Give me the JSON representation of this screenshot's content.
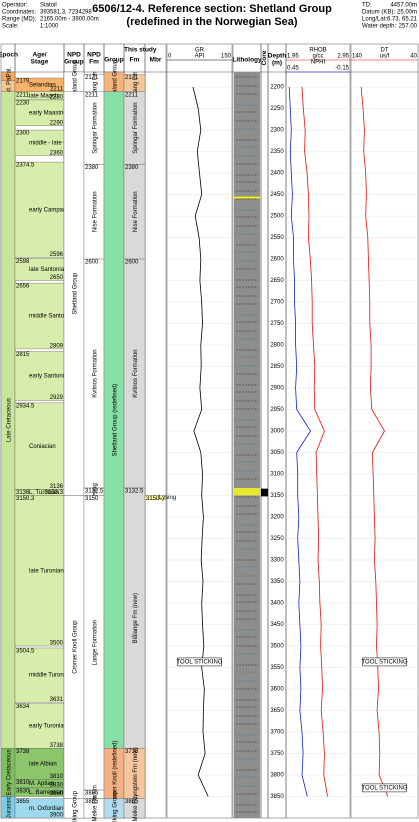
{
  "header": {
    "info": [
      [
        "Operator:",
        "Statoil"
      ],
      [
        "Coordinates:",
        "393581.3, 7234298"
      ],
      [
        "Range (MD):",
        "2165.00m - 3900.00m"
      ],
      [
        "Scale:",
        "1:1000"
      ]
    ],
    "title": [
      "6506/12-4. Reference section: Shetland Group",
      "(redefined in the Norwegian Sea)"
    ],
    "well": [
      [
        "TD:",
        "4457.00m"
      ],
      [
        "Datum (KB):",
        "25.00m"
      ],
      [
        "Long/Lat:",
        "6.73, 65.21"
      ],
      [
        "Water depth:",
        "257.00"
      ]
    ]
  },
  "this_study": "This study",
  "depth_axis": {
    "header": [
      "Depth",
      "(m)"
    ],
    "lim": [
      2165,
      3900
    ],
    "ticks": [
      2200,
      2250,
      2300,
      2350,
      2400,
      2450,
      2500,
      2550,
      2600,
      2650,
      2700,
      2750,
      2800,
      2850,
      2900,
      2950,
      3000,
      3050,
      3100,
      3150,
      3200,
      3250,
      3300,
      3350,
      3400,
      3450,
      3500,
      3550,
      3600,
      3650,
      3700,
      3750,
      3800,
      3850
    ]
  },
  "columns": [
    {
      "key": "epoch",
      "header": [
        "Epoch"
      ],
      "rotate": true,
      "print_depths": false,
      "intervals": [
        {
          "label": "Lt. Pal.",
          "top": 2165,
          "base": 2185,
          "color": "#f5a85a"
        },
        {
          "label": "Mid. Pal.",
          "top": 2185,
          "base": 2211,
          "color": "#f8c68c"
        },
        {
          "label": "Late Cretaceous",
          "top": 2211,
          "base": 3738,
          "color": "#c8e69a"
        },
        {
          "label": "Early Cretaceous",
          "top": 3738,
          "base": 3850,
          "color": "#7fbf5e"
        },
        {
          "label": "Jurassic",
          "top": 3850,
          "base": 3900,
          "color": "#7ecde6"
        }
      ]
    },
    {
      "key": "stage",
      "header": [
        "Age/",
        "Stage"
      ],
      "rotate": false,
      "print_depths": true,
      "intervals": [
        {
          "label": "Selandian",
          "top": 2179,
          "base": 2211,
          "color": "#f7b36b"
        },
        {
          "label": "late Maastr.",
          "top": 2211,
          "base": 2230,
          "color": "#d8ecab"
        },
        {
          "label": "early Maastricht.",
          "top": 2230,
          "base": 2290,
          "color": "#d8ecab"
        },
        {
          "label": "middle - late Campanian",
          "top": 2300,
          "base": 2360,
          "color": "#d8ecab"
        },
        {
          "label": "early Campanian",
          "top": 2374.5,
          "base": 2596,
          "color": "#d8ecab"
        },
        {
          "label": "late Santonian",
          "top": 2598,
          "base": 2650,
          "color": "#d8ecab"
        },
        {
          "label": "middle Santonian",
          "top": 2656,
          "base": 2809,
          "color": "#d8ecab"
        },
        {
          "label": "early Santonian",
          "top": 2815,
          "base": 2929,
          "color": "#d8ecab"
        },
        {
          "label": "Coniacian",
          "top": 2934.5,
          "base": 3136,
          "color": "#d8ecab"
        },
        {
          "label": "L. Turonian",
          "top": 3136,
          "base": 3150.3,
          "color": "#d8ecab"
        },
        {
          "label": "late Turonian",
          "top": 3150.3,
          "base": 3500,
          "color": "#d8ecab"
        },
        {
          "label": "middle Turonian",
          "top": 3504.5,
          "base": 3631,
          "color": "#d8ecab"
        },
        {
          "label": "early Turonian",
          "top": 3634,
          "base": 3738,
          "color": "#d8ecab"
        },
        {
          "label": "late Albian",
          "top": 3738,
          "base": 3810,
          "color": "#8cc56c"
        },
        {
          "label": "M. Aptian",
          "top": 3810,
          "base": 3830,
          "color": "#8cc56c"
        },
        {
          "label": "L. Barremian - Berriasian",
          "top": 3830,
          "base": 3850,
          "color": "#8cc56c"
        },
        {
          "label": "m. Oxfordian - Callovian",
          "top": 3855,
          "base": 3900,
          "color": "#9fd9ec"
        }
      ]
    },
    {
      "key": "npd_group",
      "header": [
        "NPD",
        "Group"
      ],
      "rotate": true,
      "print_depths": false,
      "intervals": [
        {
          "label": "Rogaland Group",
          "top": 2165,
          "base": 2211,
          "color": "#ffffff"
        },
        {
          "label": "Shetland Group",
          "top": 2211,
          "base": 3150,
          "color": "#ffffff"
        },
        {
          "label": "Cromer Knoll Group",
          "top": 3150,
          "base": 3855,
          "color": "#ffffff"
        },
        {
          "label": "Viking Group",
          "top": 3855,
          "base": 3900,
          "color": "#ffffff"
        }
      ]
    },
    {
      "key": "npd_fm",
      "header": [
        "NPD",
        "Fm"
      ],
      "rotate": true,
      "print_depths": true,
      "intervals": [
        {
          "label": "Tang Fm",
          "top": 2171,
          "base": 2211,
          "color": "#ffffff"
        },
        {
          "label": "Springar Formation",
          "top": 2211,
          "base": 2380,
          "color": "#ffffff"
        },
        {
          "label": "Nise Formation",
          "top": 2380,
          "base": 2600,
          "color": "#ffffff"
        },
        {
          "label": "Kvitnos Formation",
          "top": 2600,
          "base": 3132.5,
          "color": "#ffffff"
        },
        {
          "label": "Lysing",
          "top": 3132.5,
          "base": 3150,
          "color": "#ffffff"
        },
        {
          "label": "Lange Formation",
          "top": 3150,
          "base": 3835,
          "color": "#ffffff"
        },
        {
          "label": "Lyr Fm",
          "top": 3835,
          "base": 3855,
          "color": "#ffffff"
        },
        {
          "label": "Melke Fm",
          "top": 3855,
          "base": 3900,
          "color": "#ffffff"
        }
      ]
    },
    {
      "key": "group",
      "header": [
        "Group"
      ],
      "rotate": true,
      "print_depths": false,
      "intervals": [
        {
          "label": "Rogaland Group",
          "top": 2165,
          "base": 2211,
          "color": "#f3b57c"
        },
        {
          "label": "Shetland Group (redefined)",
          "top": 2211,
          "base": 3738,
          "color": "#86e0a6"
        },
        {
          "label": "Cromer Knoll (redefined)",
          "top": 3738,
          "base": 3855,
          "color": "#f4b183"
        },
        {
          "label": "Viking Group",
          "top": 3855,
          "base": 3900,
          "color": "#b4dcf0"
        }
      ]
    },
    {
      "key": "fm",
      "header": [
        "Fm"
      ],
      "rotate": true,
      "print_depths": true,
      "intervals": [
        {
          "label": "Tang Fm",
          "top": 2171,
          "base": 2211,
          "color": "#f3c89c"
        },
        {
          "label": "Springar Formation",
          "top": 2211,
          "base": 2380,
          "color": "#d9d9d9"
        },
        {
          "label": "Nise Formation",
          "top": 2380,
          "base": 2600,
          "color": "#d9d9d9"
        },
        {
          "label": "Kvitnos Formation",
          "top": 2600,
          "base": 3132.5,
          "color": "#d9d9d9"
        },
        {
          "label": "Blålange Fm (new)",
          "top": 3132.5,
          "base": 3738,
          "color": "#d9d9d9"
        },
        {
          "label": "Lyngstein Fm (new)",
          "top": 3738,
          "base": 3855,
          "color": "#f6c79e"
        },
        {
          "label": "Melke Fm",
          "top": 3855,
          "base": 3900,
          "color": "#d9d9d9"
        }
      ]
    },
    {
      "key": "mbr",
      "header": [
        "Mbr"
      ],
      "rotate": false,
      "print_depths": true,
      "intervals": [
        {
          "label": "Lysing",
          "top": 3150,
          "base": 3160,
          "color": "#ffff99"
        }
      ]
    }
  ],
  "lithology": {
    "header": "Lithology",
    "intervals": [
      {
        "top": 2165,
        "base": 3900,
        "color": "#8e8e8e"
      },
      {
        "top": 2455,
        "base": 2459,
        "color": "#ffff00"
      },
      {
        "top": 3132.5,
        "base": 3150,
        "color": "#e8e830"
      }
    ]
  },
  "core": {
    "header": "Core",
    "intervals": [
      {
        "top": 3134,
        "base": 3152
      }
    ]
  },
  "logs": {
    "depth": [
      2200,
      2250,
      2300,
      2350,
      2400,
      2450,
      2500,
      2550,
      2600,
      2650,
      2700,
      2750,
      2800,
      2850,
      2900,
      2950,
      3000,
      3050,
      3100,
      3150,
      3200,
      3250,
      3300,
      3350,
      3400,
      3450,
      3500,
      3550,
      3600,
      3650,
      3700,
      3750,
      3800,
      3850
    ],
    "tracks": [
      {
        "key": "gr",
        "curves": [
          {
            "name": "GR",
            "unit": "API",
            "lim": [
              0,
              150
            ],
            "color": "#000000",
            "values": [
              60,
              72,
              78,
              70,
              75,
              80,
              65,
              74,
              78,
              76,
              80,
              82,
              78,
              79,
              76,
              80,
              62,
              78,
              82,
              80,
              84,
              81,
              79,
              83,
              80,
              82,
              85,
              80,
              86,
              84,
              83,
              88,
              72,
              95
            ]
          }
        ]
      },
      {
        "key": "dens",
        "curves": [
          {
            "name": "RHOB",
            "unit": "g/cc",
            "lim": [
              1.95,
              2.95
            ],
            "color": "#e01010",
            "values": [
              2.2,
              2.22,
              2.25,
              2.24,
              2.28,
              2.3,
              2.31,
              2.3,
              2.33,
              2.35,
              2.36,
              2.36,
              2.38,
              2.4,
              2.39,
              2.4,
              2.55,
              2.42,
              2.43,
              2.44,
              2.45,
              2.46,
              2.45,
              2.47,
              2.48,
              2.5,
              2.49,
              2.51,
              2.52,
              2.5,
              2.53,
              2.55,
              2.54,
              2.6
            ]
          },
          {
            "name": "NPHI",
            "unit": "",
            "lim": [
              0.45,
              -0.15
            ],
            "color": "#1020d0",
            "values": [
              0.42,
              0.41,
              0.4,
              0.41,
              0.4,
              0.39,
              0.4,
              0.38,
              0.38,
              0.37,
              0.37,
              0.36,
              0.36,
              0.35,
              0.36,
              0.35,
              0.22,
              0.35,
              0.34,
              0.34,
              0.33,
              0.34,
              0.33,
              0.32,
              0.33,
              0.32,
              0.31,
              0.32,
              0.31,
              0.32,
              0.3,
              0.29,
              0.3,
              0.25
            ]
          }
        ]
      },
      {
        "key": "sonic",
        "curves": [
          {
            "name": "DT",
            "unit": "us/f",
            "lim": [
              140,
              40
            ],
            "color": "#e01010",
            "values": [
              125,
              122,
              120,
              121,
              118,
              117,
              118,
              115,
              114,
              113,
              112,
              112,
              110,
              110,
              111,
              109,
              90,
              108,
              107,
              106,
              105,
              104,
              105,
              103,
              102,
              101,
              102,
              100,
              99,
              101,
              98,
              97,
              98,
              85
            ]
          }
        ]
      }
    ]
  },
  "annotations": [
    {
      "text": "TOOL STICKING",
      "depth": 3537,
      "track": "gr"
    },
    {
      "text": "TOOL STICKING",
      "depth": 3537,
      "track": "sonic"
    },
    {
      "text": "TOOL STICKING",
      "depth": 3830,
      "track": "sonic"
    }
  ]
}
